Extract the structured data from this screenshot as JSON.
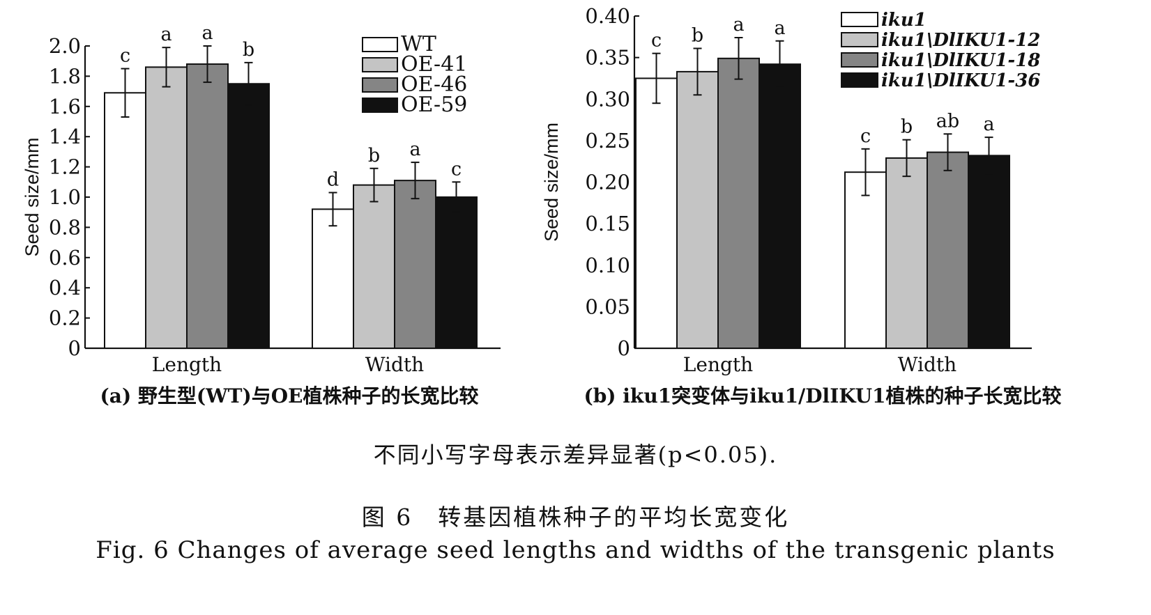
{
  "chart_data": [
    {
      "type": "bar",
      "panel": "a",
      "caption": "(a) 野生型(WT)与OE植株种子的长宽比较",
      "categories": [
        "Length",
        "Width"
      ],
      "ylabel": "Seed size/mm",
      "ylim": [
        0,
        2.0
      ],
      "yticks": [
        "0",
        "0.2",
        "0.4",
        "0.6",
        "0.8",
        "1.0",
        "1.2",
        "1.4",
        "1.6",
        "1.8",
        "2.0"
      ],
      "legend_position": "top-right",
      "grid": false,
      "series": [
        {
          "name": "WT",
          "color": "#ffffff",
          "values": [
            1.69,
            0.92
          ],
          "errors": [
            0.16,
            0.11
          ],
          "labels": [
            "c",
            "d"
          ]
        },
        {
          "name": "OE-41",
          "color": "#c4c4c4",
          "values": [
            1.86,
            1.08
          ],
          "errors": [
            0.13,
            0.11
          ],
          "labels": [
            "a",
            "b"
          ]
        },
        {
          "name": "OE-46",
          "color": "#858585",
          "values": [
            1.88,
            1.11
          ],
          "errors": [
            0.12,
            0.12
          ],
          "labels": [
            "a",
            "a"
          ]
        },
        {
          "name": "OE-59",
          "color": "#111111",
          "values": [
            1.75,
            1.0
          ],
          "errors": [
            0.14,
            0.1
          ],
          "labels": [
            "b",
            "c"
          ]
        }
      ]
    },
    {
      "type": "bar",
      "panel": "b",
      "caption": "(b) iku1突变体与iku1/DlIKU1植株的种子长宽比较",
      "categories": [
        "Length",
        "Width"
      ],
      "ylabel": "Seed size/mm",
      "ylim": [
        0,
        0.4
      ],
      "yticks": [
        "0",
        "0.05",
        "0.10",
        "0.15",
        "0.20",
        "0.25",
        "0.30",
        "0.35",
        "0.40"
      ],
      "legend_position": "top-right",
      "grid": false,
      "series": [
        {
          "name": "iku1",
          "color": "#ffffff",
          "values": [
            0.325,
            0.212
          ],
          "errors": [
            0.03,
            0.028
          ],
          "labels": [
            "c",
            "c"
          ]
        },
        {
          "name": "iku1\\DlIKU1-12",
          "color": "#c4c4c4",
          "values": [
            0.333,
            0.229
          ],
          "errors": [
            0.028,
            0.022
          ],
          "labels": [
            "b",
            "b"
          ]
        },
        {
          "name": "iku1\\DlIKU1-18",
          "color": "#858585",
          "values": [
            0.349,
            0.236
          ],
          "errors": [
            0.025,
            0.022
          ],
          "labels": [
            "a",
            "ab"
          ]
        },
        {
          "name": "iku1\\DlIKU1-36",
          "color": "#111111",
          "values": [
            0.342,
            0.232
          ],
          "errors": [
            0.028,
            0.022
          ],
          "labels": [
            "a",
            "a"
          ]
        }
      ]
    }
  ],
  "note": "不同小写字母表示差异显著(p<0.05).",
  "caption_cn": "图 6　转基因植株种子的平均长宽变化",
  "caption_en": "Fig. 6  Changes of average seed lengths and widths of the transgenic plants"
}
